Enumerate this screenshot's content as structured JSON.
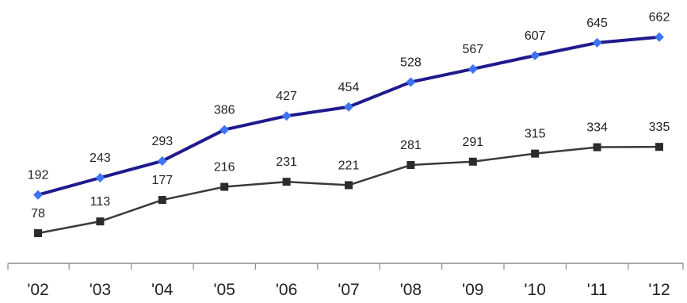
{
  "chart_data": {
    "type": "line",
    "categories": [
      "'02",
      "'03",
      "'04",
      "'05",
      "'06",
      "'07",
      "'08",
      "'09",
      "'10",
      "'11",
      "'12"
    ],
    "series": [
      {
        "values": [
          192,
          243,
          293,
          386,
          427,
          454,
          528,
          567,
          607,
          645,
          662
        ],
        "color": "#1f1a8c",
        "marker": "diamond",
        "marker_color": "#3d73f5"
      },
      {
        "values": [
          78,
          113,
          177,
          216,
          231,
          221,
          281,
          291,
          315,
          334,
          335
        ],
        "color": "#3a3a3a",
        "marker": "square",
        "marker_color": "#2b2b2b"
      }
    ],
    "title": "",
    "xlabel": "",
    "ylabel": "",
    "ylim": [
      0,
      700
    ],
    "grid": false,
    "legend": "none",
    "data_labels": true
  }
}
